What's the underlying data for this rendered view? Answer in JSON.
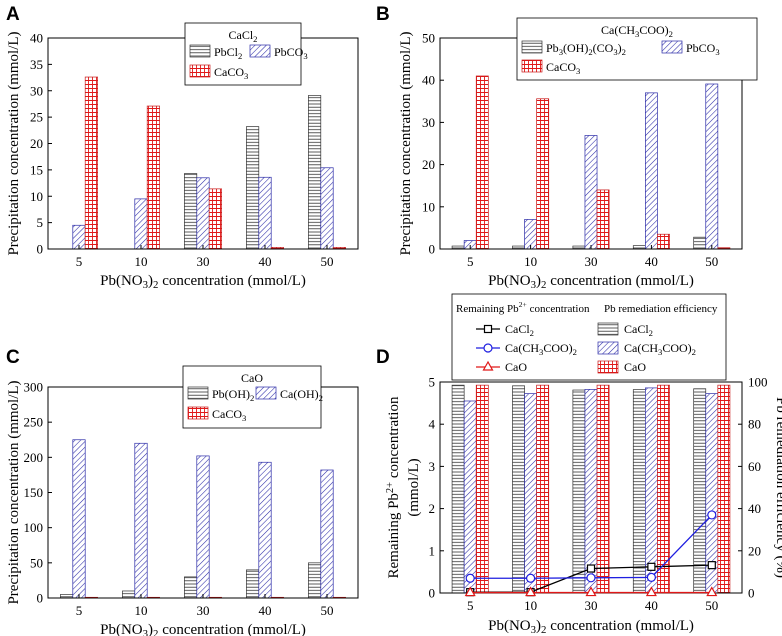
{
  "panels": [
    {
      "letter": "A",
      "chart_data": {
        "type": "bar",
        "title": "CaCl2",
        "categories": [
          "5",
          "10",
          "30",
          "40",
          "50"
        ],
        "series": [
          {
            "name": "PbCl2",
            "pattern": "hlines",
            "values": [
              0,
              0,
              14.3,
              23.2,
              29.1
            ]
          },
          {
            "name": "PbCO3",
            "pattern": "diag",
            "values": [
              4.5,
              9.5,
              13.5,
              13.6,
              15.4
            ]
          },
          {
            "name": "CaCO3",
            "pattern": "grid",
            "values": [
              32.6,
              27.1,
              11.4,
              0.3,
              0.3
            ]
          }
        ],
        "xlabel": "Pb(NO3)2 concentration (mmol/L)",
        "ylabel": "Precipitation concentration (mmol/L)",
        "ylim": [
          0,
          40
        ],
        "yticks": [
          "0",
          "5",
          "10",
          "15",
          "20",
          "25",
          "30",
          "35",
          "40"
        ]
      }
    },
    {
      "letter": "B",
      "chart_data": {
        "type": "bar",
        "title": "Ca(CH3COO)2",
        "categories": [
          "5",
          "10",
          "30",
          "40",
          "50"
        ],
        "series": [
          {
            "name": "Pb3(OH)2(CO3)2",
            "pattern": "hlines",
            "values": [
              0.7,
              0.7,
              0.7,
              0.8,
              2.8
            ]
          },
          {
            "name": "PbCO3",
            "pattern": "diag",
            "values": [
              2.0,
              7.0,
              26.9,
              37.0,
              39.1
            ]
          },
          {
            "name": "CaCO3",
            "pattern": "grid",
            "values": [
              41.0,
              35.6,
              14.0,
              3.5,
              0.3
            ]
          }
        ],
        "xlabel": "Pb(NO3)2 concentration (mmol/L)",
        "ylabel": "Precipitation concentration (mmol/L)",
        "ylim": [
          0,
          50
        ],
        "yticks": [
          "0",
          "10",
          "20",
          "30",
          "40",
          "50"
        ]
      }
    },
    {
      "letter": "C",
      "chart_data": {
        "type": "bar",
        "title": "CaO",
        "categories": [
          "5",
          "10",
          "30",
          "40",
          "50"
        ],
        "series": [
          {
            "name": "Pb(OH)2",
            "pattern": "hlines",
            "values": [
              5,
              10,
              30,
              40,
              50
            ]
          },
          {
            "name": "Ca(OH)2",
            "pattern": "diag",
            "values": [
              225,
              220,
              202,
              193,
              182
            ]
          },
          {
            "name": "CaCO3",
            "pattern": "grid",
            "values": [
              1,
              1,
              1,
              1,
              1
            ]
          }
        ],
        "xlabel": "Pb(NO3)2 concentration (mmol/L)",
        "ylabel": "Precipitation concentration (mmol/L)",
        "ylim": [
          0,
          300
        ],
        "yticks": [
          "0",
          "50",
          "100",
          "150",
          "200",
          "250",
          "300"
        ]
      }
    },
    {
      "letter": "D",
      "chart_data": {
        "type": "bar",
        "categories": [
          "5",
          "10",
          "30",
          "40",
          "50"
        ],
        "legend_header_left": "Remaining Pb2+ concentration",
        "legend_header_right": "Pb remediation efficiency",
        "series": [
          {
            "name": "CaCl2",
            "pattern": "hlines",
            "values": [
              98.5,
              98.2,
              96.2,
              96.4,
              96.8
            ]
          },
          {
            "name": "Ca(CH3COO)2",
            "pattern": "diag",
            "values": [
              91.0,
              94.5,
              96.5,
              97.2,
              94.5
            ]
          },
          {
            "name": "CaO",
            "pattern": "grid",
            "values": [
              98.5,
              98.5,
              98.5,
              98.5,
              98.5
            ]
          }
        ],
        "line_series": [
          {
            "name": "CaCl2",
            "marker": "square",
            "color": "#000000",
            "values": [
              0.02,
              0.02,
              0.58,
              0.62,
              0.66
            ]
          },
          {
            "name": "Ca(CH3COO)2",
            "marker": "circle",
            "color": "#1f1fe0",
            "values": [
              0.35,
              0.35,
              0.36,
              0.37,
              1.85
            ]
          },
          {
            "name": "CaO",
            "marker": "triangle",
            "color": "#e01818",
            "values": [
              0.01,
              0.01,
              0.01,
              0.01,
              0.01
            ]
          }
        ],
        "xlabel": "Pb(NO3)2 concentration (mmol/L)",
        "ylabel_left": "Remaining Pb2+ concentration (mmol/L)",
        "ylabel_right": "Pb remediation efficiency (%)",
        "ylim_left": [
          0,
          5
        ],
        "ylim_right": [
          0,
          100
        ],
        "yticks_left": [
          "0",
          "1",
          "2",
          "3",
          "4",
          "5"
        ],
        "yticks_right": [
          "0",
          "20",
          "40",
          "60",
          "80",
          "100"
        ]
      }
    }
  ],
  "colors": {
    "axis": "#000000",
    "bar_line": "#333333",
    "diag": "#2c2ca8",
    "grid": "#e01818"
  }
}
